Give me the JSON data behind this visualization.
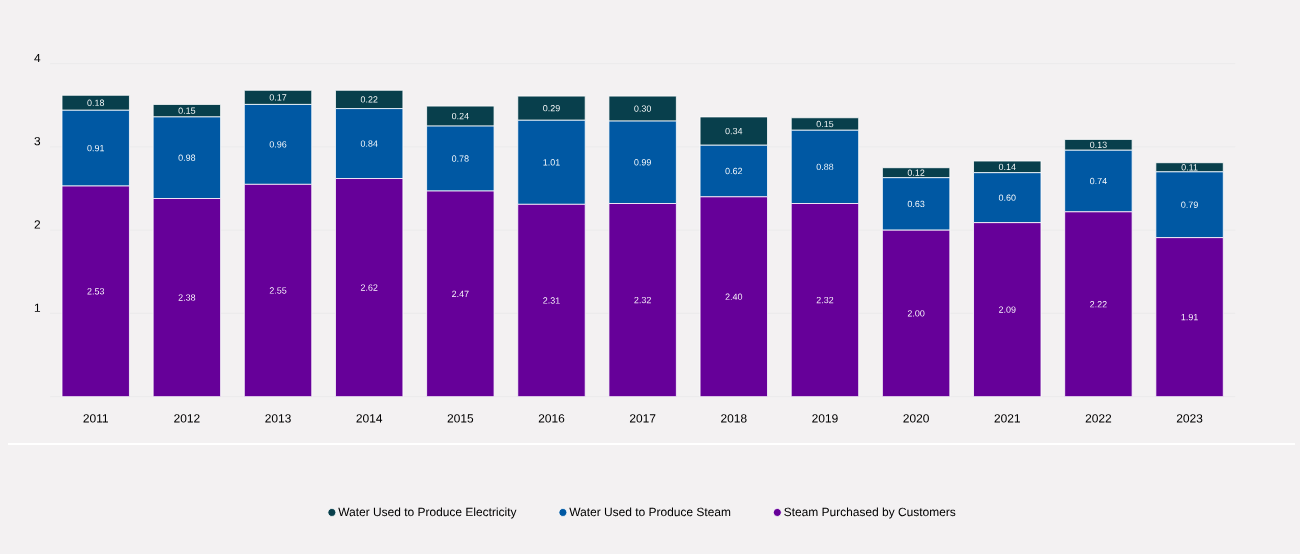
{
  "chart_data": {
    "type": "bar",
    "stacked": true,
    "categories": [
      "2011",
      "2012",
      "2013",
      "2014",
      "2015",
      "2016",
      "2017",
      "2018",
      "2019",
      "2020",
      "2021",
      "2022",
      "2023"
    ],
    "ylim": [
      0,
      4
    ],
    "yticks": [
      {
        "value": 0,
        "label": null
      },
      1,
      2,
      3,
      4
    ],
    "grid": "y",
    "legend": "bottom",
    "marker": "circle",
    "series": [
      {
        "name": "Steam Purchased by Customers",
        "color": "#660099",
        "values": [
          2.53,
          2.38,
          2.55,
          2.62,
          2.47,
          2.31,
          2.32,
          2.4,
          2.32,
          2.0,
          2.09,
          2.22,
          1.91
        ],
        "value_labels": [
          "2.53",
          "2.38",
          "2.55",
          "2.62",
          "2.47",
          "2.31",
          "2.32",
          "2.40",
          "2.32",
          "2.00",
          "2.09",
          "2.22",
          "1.91"
        ]
      },
      {
        "name": "Water Used to Produce Steam",
        "color": "#0058a3",
        "values": [
          0.91,
          0.98,
          0.96,
          0.84,
          0.78,
          1.01,
          0.99,
          0.62,
          0.88,
          0.63,
          0.6,
          0.74,
          0.79
        ],
        "value_labels": [
          "0.91",
          "0.98",
          "0.96",
          "0.84",
          "0.78",
          "1.01",
          "0.99",
          "0.62",
          "0.88",
          "0.63",
          "0.60",
          "0.74",
          "0.79"
        ]
      },
      {
        "name": "Water Used to Produce Electricity",
        "color": "#083f4c",
        "values": [
          0.18,
          0.15,
          0.17,
          0.22,
          0.24,
          0.29,
          0.3,
          0.34,
          0.15,
          0.12,
          0.14,
          0.13,
          0.11
        ],
        "value_labels": [
          "0.18",
          "0.15",
          "0.17",
          "0.22",
          "0.24",
          "0.29",
          "0.30",
          "0.34",
          "0.15",
          "0.12",
          "0.14",
          "0.13",
          "0.11"
        ]
      }
    ]
  }
}
